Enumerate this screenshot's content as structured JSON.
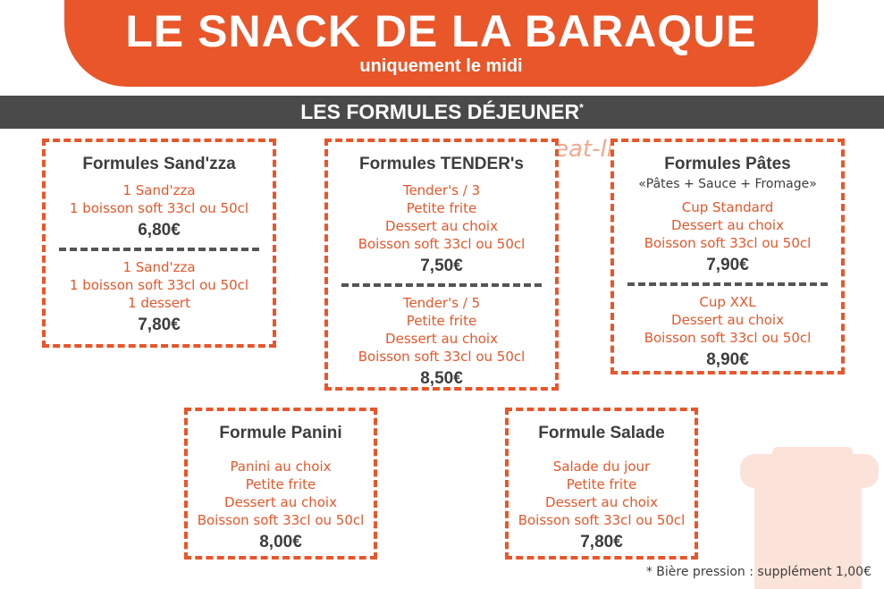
{
  "header": {
    "title": "LE SNACK DE LA BARAQUE",
    "subtitle": "uniquement le midi"
  },
  "section": {
    "title": "LES FORMULES DÉJEUNER",
    "asterisk": "*"
  },
  "watermark": "eat-list.fr",
  "cards": {
    "sandzza": {
      "title": "Formules Sand'zza",
      "menus": [
        {
          "lines": [
            "1 Sand'zza",
            "1 boisson soft 33cl ou 50cl"
          ],
          "price": "6,80€"
        },
        {
          "lines": [
            "1 Sand'zza",
            "1 boisson soft 33cl ou 50cl",
            "1 dessert"
          ],
          "price": "7,80€"
        }
      ]
    },
    "tender": {
      "title": "Formules TENDER's",
      "menus": [
        {
          "lines": [
            "Tender's / 3",
            "Petite frite",
            "Dessert au choix",
            "Boisson soft 33cl ou 50cl"
          ],
          "price": "7,50€"
        },
        {
          "lines": [
            "Tender's / 5",
            "Petite frite",
            "Dessert au choix",
            "Boisson soft 33cl ou 50cl"
          ],
          "price": "8,50€"
        }
      ]
    },
    "pates": {
      "title": "Formules Pâtes",
      "subtitle": "«Pâtes + Sauce + Fromage»",
      "menus": [
        {
          "lines": [
            "Cup Standard",
            "Dessert au choix",
            "Boisson soft 33cl ou 50cl"
          ],
          "price": "7,90€"
        },
        {
          "lines": [
            "Cup XXL",
            "Dessert au choix",
            "Boisson soft 33cl ou 50cl"
          ],
          "price": "8,90€"
        }
      ]
    },
    "panini": {
      "title": "Formule Panini",
      "menus": [
        {
          "lines": [
            "Panini au choix",
            "Petite frite",
            "Dessert au choix",
            "Boisson soft 33cl ou 50cl"
          ],
          "price": "8,00€"
        }
      ]
    },
    "salade": {
      "title": "Formule Salade",
      "menus": [
        {
          "lines": [
            "Salade du jour",
            "Petite frite",
            "Dessert au choix",
            "Boisson soft 33cl ou 50cl"
          ],
          "price": "7,80€"
        }
      ]
    }
  },
  "footnote": "* Bière pression : supplément 1,00€",
  "colors": {
    "accent": "#e8562a",
    "dark": "#4a4a4a",
    "text": "#3d3d3d"
  }
}
